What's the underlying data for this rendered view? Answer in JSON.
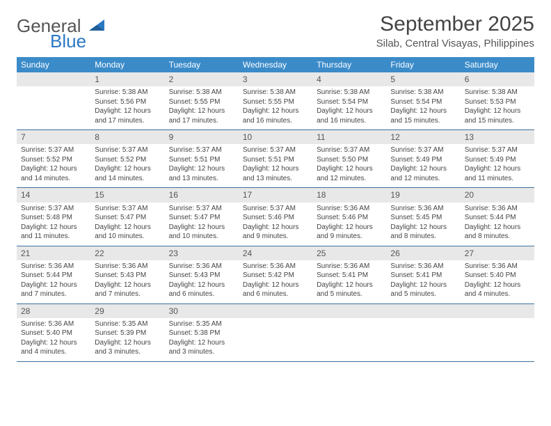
{
  "logo": {
    "line1": "General",
    "line2": "Blue"
  },
  "title": "September 2025",
  "location": "Silab, Central Visayas, Philippines",
  "colors": {
    "header_bg": "#3b8bc9",
    "header_text": "#ffffff",
    "daynum_bg": "#e8e8e8",
    "row_border": "#3b6f9c",
    "logo_gray": "#555555",
    "logo_blue": "#2b78c4",
    "text": "#444444"
  },
  "fonts": {
    "title_size": 30,
    "location_size": 15,
    "weekday_size": 12,
    "daynum_size": 12,
    "cell_size": 10
  },
  "weekdays": [
    "Sunday",
    "Monday",
    "Tuesday",
    "Wednesday",
    "Thursday",
    "Friday",
    "Saturday"
  ],
  "weeks": [
    [
      {
        "n": "",
        "lines": []
      },
      {
        "n": "1",
        "lines": [
          "Sunrise: 5:38 AM",
          "Sunset: 5:56 PM",
          "Daylight: 12 hours and 17 minutes."
        ]
      },
      {
        "n": "2",
        "lines": [
          "Sunrise: 5:38 AM",
          "Sunset: 5:55 PM",
          "Daylight: 12 hours and 17 minutes."
        ]
      },
      {
        "n": "3",
        "lines": [
          "Sunrise: 5:38 AM",
          "Sunset: 5:55 PM",
          "Daylight: 12 hours and 16 minutes."
        ]
      },
      {
        "n": "4",
        "lines": [
          "Sunrise: 5:38 AM",
          "Sunset: 5:54 PM",
          "Daylight: 12 hours and 16 minutes."
        ]
      },
      {
        "n": "5",
        "lines": [
          "Sunrise: 5:38 AM",
          "Sunset: 5:54 PM",
          "Daylight: 12 hours and 15 minutes."
        ]
      },
      {
        "n": "6",
        "lines": [
          "Sunrise: 5:38 AM",
          "Sunset: 5:53 PM",
          "Daylight: 12 hours and 15 minutes."
        ]
      }
    ],
    [
      {
        "n": "7",
        "lines": [
          "Sunrise: 5:37 AM",
          "Sunset: 5:52 PM",
          "Daylight: 12 hours and 14 minutes."
        ]
      },
      {
        "n": "8",
        "lines": [
          "Sunrise: 5:37 AM",
          "Sunset: 5:52 PM",
          "Daylight: 12 hours and 14 minutes."
        ]
      },
      {
        "n": "9",
        "lines": [
          "Sunrise: 5:37 AM",
          "Sunset: 5:51 PM",
          "Daylight: 12 hours and 13 minutes."
        ]
      },
      {
        "n": "10",
        "lines": [
          "Sunrise: 5:37 AM",
          "Sunset: 5:51 PM",
          "Daylight: 12 hours and 13 minutes."
        ]
      },
      {
        "n": "11",
        "lines": [
          "Sunrise: 5:37 AM",
          "Sunset: 5:50 PM",
          "Daylight: 12 hours and 12 minutes."
        ]
      },
      {
        "n": "12",
        "lines": [
          "Sunrise: 5:37 AM",
          "Sunset: 5:49 PM",
          "Daylight: 12 hours and 12 minutes."
        ]
      },
      {
        "n": "13",
        "lines": [
          "Sunrise: 5:37 AM",
          "Sunset: 5:49 PM",
          "Daylight: 12 hours and 11 minutes."
        ]
      }
    ],
    [
      {
        "n": "14",
        "lines": [
          "Sunrise: 5:37 AM",
          "Sunset: 5:48 PM",
          "Daylight: 12 hours and 11 minutes."
        ]
      },
      {
        "n": "15",
        "lines": [
          "Sunrise: 5:37 AM",
          "Sunset: 5:47 PM",
          "Daylight: 12 hours and 10 minutes."
        ]
      },
      {
        "n": "16",
        "lines": [
          "Sunrise: 5:37 AM",
          "Sunset: 5:47 PM",
          "Daylight: 12 hours and 10 minutes."
        ]
      },
      {
        "n": "17",
        "lines": [
          "Sunrise: 5:37 AM",
          "Sunset: 5:46 PM",
          "Daylight: 12 hours and 9 minutes."
        ]
      },
      {
        "n": "18",
        "lines": [
          "Sunrise: 5:36 AM",
          "Sunset: 5:46 PM",
          "Daylight: 12 hours and 9 minutes."
        ]
      },
      {
        "n": "19",
        "lines": [
          "Sunrise: 5:36 AM",
          "Sunset: 5:45 PM",
          "Daylight: 12 hours and 8 minutes."
        ]
      },
      {
        "n": "20",
        "lines": [
          "Sunrise: 5:36 AM",
          "Sunset: 5:44 PM",
          "Daylight: 12 hours and 8 minutes."
        ]
      }
    ],
    [
      {
        "n": "21",
        "lines": [
          "Sunrise: 5:36 AM",
          "Sunset: 5:44 PM",
          "Daylight: 12 hours and 7 minutes."
        ]
      },
      {
        "n": "22",
        "lines": [
          "Sunrise: 5:36 AM",
          "Sunset: 5:43 PM",
          "Daylight: 12 hours and 7 minutes."
        ]
      },
      {
        "n": "23",
        "lines": [
          "Sunrise: 5:36 AM",
          "Sunset: 5:43 PM",
          "Daylight: 12 hours and 6 minutes."
        ]
      },
      {
        "n": "24",
        "lines": [
          "Sunrise: 5:36 AM",
          "Sunset: 5:42 PM",
          "Daylight: 12 hours and 6 minutes."
        ]
      },
      {
        "n": "25",
        "lines": [
          "Sunrise: 5:36 AM",
          "Sunset: 5:41 PM",
          "Daylight: 12 hours and 5 minutes."
        ]
      },
      {
        "n": "26",
        "lines": [
          "Sunrise: 5:36 AM",
          "Sunset: 5:41 PM",
          "Daylight: 12 hours and 5 minutes."
        ]
      },
      {
        "n": "27",
        "lines": [
          "Sunrise: 5:36 AM",
          "Sunset: 5:40 PM",
          "Daylight: 12 hours and 4 minutes."
        ]
      }
    ],
    [
      {
        "n": "28",
        "lines": [
          "Sunrise: 5:36 AM",
          "Sunset: 5:40 PM",
          "Daylight: 12 hours and 4 minutes."
        ]
      },
      {
        "n": "29",
        "lines": [
          "Sunrise: 5:35 AM",
          "Sunset: 5:39 PM",
          "Daylight: 12 hours and 3 minutes."
        ]
      },
      {
        "n": "30",
        "lines": [
          "Sunrise: 5:35 AM",
          "Sunset: 5:38 PM",
          "Daylight: 12 hours and 3 minutes."
        ]
      },
      {
        "n": "",
        "lines": []
      },
      {
        "n": "",
        "lines": []
      },
      {
        "n": "",
        "lines": []
      },
      {
        "n": "",
        "lines": []
      }
    ]
  ]
}
